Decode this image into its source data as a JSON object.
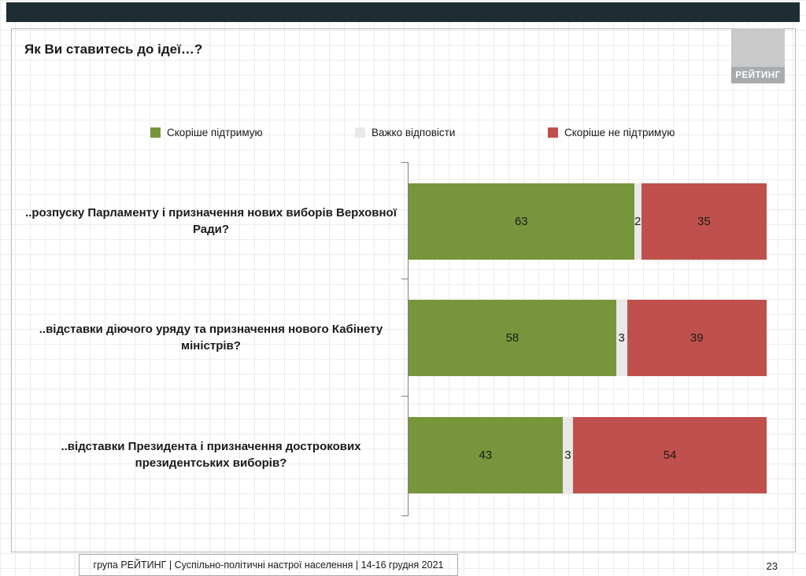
{
  "header": {
    "title": "Як Ви ставитесь до ідеї…?",
    "logo_text": "РЕЙТИНГ"
  },
  "legend": [
    {
      "label": "Скоріше підтримую",
      "color": "#77963b"
    },
    {
      "label": "Важко відповісти",
      "color": "#e8e8e8"
    },
    {
      "label": "Скоріше не підтримую",
      "color": "#c0504d"
    }
  ],
  "chart_data": {
    "type": "bar",
    "orientation": "horizontal",
    "stacked": true,
    "xlim": [
      0,
      100
    ],
    "grid": false,
    "legend_position": "top",
    "categories": [
      "..розпуску Парламенту і призначення нових виборів Верховної Ради?",
      "..відставки діючого уряду та призначення нового Кабінету міністрів?",
      "..відставки Президента і призначення дострокових президентських виборів?"
    ],
    "series": [
      {
        "name": "Скоріше підтримую",
        "color": "#77963b",
        "values": [
          63,
          58,
          43
        ]
      },
      {
        "name": "Важко відповісти",
        "color": "#e8e8e8",
        "values": [
          2,
          3,
          3
        ]
      },
      {
        "name": "Скоріше не підтримую",
        "color": "#c0504d",
        "values": [
          35,
          39,
          54
        ]
      }
    ]
  },
  "footer": {
    "text": "група РЕЙТИНГ | Суспільно-політичні настрої населення |  14-16 грудня 2021",
    "page_number": "23"
  }
}
